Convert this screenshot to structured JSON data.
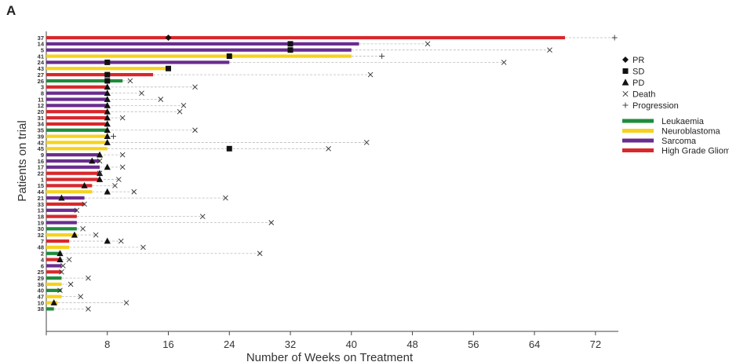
{
  "panel_label": "A",
  "chart_data": {
    "type": "swimmer",
    "title": "",
    "xlabel": "Number of Weeks on Treatment",
    "ylabel": "Patients on trial",
    "xlim": [
      0,
      75
    ],
    "xticks": [
      0,
      8,
      16,
      24,
      32,
      40,
      48,
      56,
      64,
      72
    ],
    "xtick_labels": [
      "",
      "8",
      "16",
      "24",
      "32",
      "40",
      "48",
      "56",
      "64",
      "72"
    ],
    "colors": {
      "Leukaemia": "#1e8c3a",
      "Neuroblastoma": "#f5d21e",
      "Sarcoma": "#6a2c8e",
      "High Grade Glioma": "#d8282c"
    },
    "legend_markers": [
      {
        "symbol": "diamond",
        "label": "PR"
      },
      {
        "symbol": "square",
        "label": "SD"
      },
      {
        "symbol": "triangle",
        "label": "PD"
      },
      {
        "symbol": "cross",
        "label": "Death"
      },
      {
        "symbol": "plus",
        "label": "Progression"
      }
    ],
    "legend_groups": [
      "Leukaemia",
      "Neuroblastoma",
      "Sarcoma",
      "High Grade Glioma"
    ],
    "patients": [
      {
        "id": "37",
        "group": "High Grade Glioma",
        "weeks": 68,
        "response": "PR",
        "response_week": 16,
        "event": "Progression",
        "event_week": 74.5
      },
      {
        "id": "14",
        "group": "Sarcoma",
        "weeks": 41,
        "response": "SD",
        "response_week": 32,
        "event": "Death",
        "event_week": 50
      },
      {
        "id": "5",
        "group": "Sarcoma",
        "weeks": 40,
        "response": "SD",
        "response_week": 32,
        "event": "Death",
        "event_week": 66
      },
      {
        "id": "41",
        "group": "Neuroblastoma",
        "weeks": 40,
        "response": "SD",
        "response_week": 24,
        "event": "Progression",
        "event_week": 44
      },
      {
        "id": "24",
        "group": "Sarcoma",
        "weeks": 24,
        "response": "SD",
        "response_week": 8,
        "event": "Death",
        "event_week": 60
      },
      {
        "id": "43",
        "group": "Neuroblastoma",
        "weeks": 16,
        "response": "SD",
        "response_week": 16,
        "event": "",
        "event_week": null
      },
      {
        "id": "27",
        "group": "High Grade Glioma",
        "weeks": 14,
        "response": "SD",
        "response_week": 8,
        "event": "Death",
        "event_week": 42.5
      },
      {
        "id": "26",
        "group": "Leukaemia",
        "weeks": 10,
        "response": "SD",
        "response_week": 8,
        "event": "Death",
        "event_week": 11
      },
      {
        "id": "3",
        "group": "High Grade Glioma",
        "weeks": 8,
        "response": "PD",
        "response_week": 8,
        "event": "Death",
        "event_week": 19.5
      },
      {
        "id": "8",
        "group": "Sarcoma",
        "weeks": 8,
        "response": "PD",
        "response_week": 8,
        "event": "Death",
        "event_week": 12.5
      },
      {
        "id": "11",
        "group": "Sarcoma",
        "weeks": 8,
        "response": "PD",
        "response_week": 8,
        "event": "Death",
        "event_week": 15
      },
      {
        "id": "12",
        "group": "Sarcoma",
        "weeks": 8,
        "response": "PD",
        "response_week": 8,
        "event": "Death",
        "event_week": 18
      },
      {
        "id": "20",
        "group": "High Grade Glioma",
        "weeks": 8,
        "response": "PD",
        "response_week": 8,
        "event": "Death",
        "event_week": 17.5
      },
      {
        "id": "31",
        "group": "High Grade Glioma",
        "weeks": 8,
        "response": "PD",
        "response_week": 8,
        "event": "Death",
        "event_week": 10
      },
      {
        "id": "34",
        "group": "High Grade Glioma",
        "weeks": 8,
        "response": "PD",
        "response_week": 8,
        "event": "",
        "event_week": null
      },
      {
        "id": "35",
        "group": "Leukaemia",
        "weeks": 8,
        "response": "PD",
        "response_week": 8,
        "event": "Death",
        "event_week": 19.5
      },
      {
        "id": "39",
        "group": "Neuroblastoma",
        "weeks": 8,
        "response": "PD",
        "response_week": 8,
        "event": "Progression",
        "event_week": 8.8
      },
      {
        "id": "42",
        "group": "Neuroblastoma",
        "weeks": 8,
        "response": "PD",
        "response_week": 8,
        "event": "Death",
        "event_week": 42
      },
      {
        "id": "45",
        "group": "Neuroblastoma",
        "weeks": 8,
        "response": "SD",
        "response_week": 24,
        "event": "Death",
        "event_week": 37
      },
      {
        "id": "9",
        "group": "Sarcoma",
        "weeks": 7,
        "response": "PD",
        "response_week": 7,
        "event": "Death",
        "event_week": 10
      },
      {
        "id": "16",
        "group": "Sarcoma",
        "weeks": 7,
        "response": "PD",
        "response_week": 6,
        "event": "Death",
        "event_week": 7
      },
      {
        "id": "17",
        "group": "Sarcoma",
        "weeks": 7,
        "response": "PD",
        "response_week": 8,
        "event": "Death",
        "event_week": 10
      },
      {
        "id": "22",
        "group": "High Grade Glioma",
        "weeks": 7,
        "response": "PD",
        "response_week": 7,
        "event": "Death",
        "event_week": 7
      },
      {
        "id": "1",
        "group": "High Grade Glioma",
        "weeks": 7,
        "response": "PD",
        "response_week": 7,
        "event": "Death",
        "event_week": 9.5
      },
      {
        "id": "15",
        "group": "High Grade Glioma",
        "weeks": 6,
        "response": "PD",
        "response_week": 5,
        "event": "Death",
        "event_week": 9
      },
      {
        "id": "44",
        "group": "Neuroblastoma",
        "weeks": 6,
        "response": "PD",
        "response_week": 8,
        "event": "Death",
        "event_week": 11.5
      },
      {
        "id": "21",
        "group": "Sarcoma",
        "weeks": 5,
        "response": "PD",
        "response_week": 2,
        "event": "Death",
        "event_week": 23.5
      },
      {
        "id": "33",
        "group": "High Grade Glioma",
        "weeks": 5,
        "response": "",
        "response_week": null,
        "event": "Death",
        "event_week": 5
      },
      {
        "id": "13",
        "group": "Sarcoma",
        "weeks": 4,
        "response": "",
        "response_week": null,
        "event": "Death",
        "event_week": 4
      },
      {
        "id": "18",
        "group": "High Grade Glioma",
        "weeks": 4,
        "response": "",
        "response_week": null,
        "event": "Death",
        "event_week": 20.5
      },
      {
        "id": "19",
        "group": "Sarcoma",
        "weeks": 4,
        "response": "",
        "response_week": null,
        "event": "Death",
        "event_week": 29.5
      },
      {
        "id": "30",
        "group": "Leukaemia",
        "weeks": 4,
        "response": "",
        "response_week": null,
        "event": "Death",
        "event_week": 4.8
      },
      {
        "id": "32",
        "group": "Neuroblastoma",
        "weeks": 4,
        "response": "PD",
        "response_week": 3.7,
        "event": "Death",
        "event_week": 6.5
      },
      {
        "id": "7",
        "group": "High Grade Glioma",
        "weeks": 3,
        "response": "PD",
        "response_week": 8,
        "event": "Death",
        "event_week": 9.8
      },
      {
        "id": "48",
        "group": "Neuroblastoma",
        "weeks": 3,
        "response": "",
        "response_week": null,
        "event": "Death",
        "event_week": 12.7
      },
      {
        "id": "2",
        "group": "Leukaemia",
        "weeks": 2,
        "response": "PD",
        "response_week": 1.8,
        "event": "Death",
        "event_week": 28
      },
      {
        "id": "4",
        "group": "High Grade Glioma",
        "weeks": 2,
        "response": "PD",
        "response_week": 1.8,
        "event": "Death",
        "event_week": 3
      },
      {
        "id": "6",
        "group": "Sarcoma",
        "weeks": 2,
        "response": "",
        "response_week": null,
        "event": "Death",
        "event_week": 2.2
      },
      {
        "id": "25",
        "group": "High Grade Glioma",
        "weeks": 2,
        "response": "",
        "response_week": null,
        "event": "Death",
        "event_week": 2
      },
      {
        "id": "29",
        "group": "Leukaemia",
        "weeks": 2,
        "response": "",
        "response_week": null,
        "event": "Death",
        "event_week": 5.5
      },
      {
        "id": "36",
        "group": "Neuroblastoma",
        "weeks": 2,
        "response": "",
        "response_week": null,
        "event": "Death",
        "event_week": 3.2
      },
      {
        "id": "40",
        "group": "Leukaemia",
        "weeks": 2,
        "response": "",
        "response_week": null,
        "event": "Death",
        "event_week": 1.8
      },
      {
        "id": "47",
        "group": "Neuroblastoma",
        "weeks": 2,
        "response": "",
        "response_week": null,
        "event": "Death",
        "event_week": 4.5
      },
      {
        "id": "10",
        "group": "Neuroblastoma",
        "weeks": 1.5,
        "response": "PD",
        "response_week": 1,
        "event": "Death",
        "event_week": 10.5
      },
      {
        "id": "38",
        "group": "Leukaemia",
        "weeks": 1,
        "response": "",
        "response_week": null,
        "event": "Death",
        "event_week": 5.5
      }
    ]
  }
}
